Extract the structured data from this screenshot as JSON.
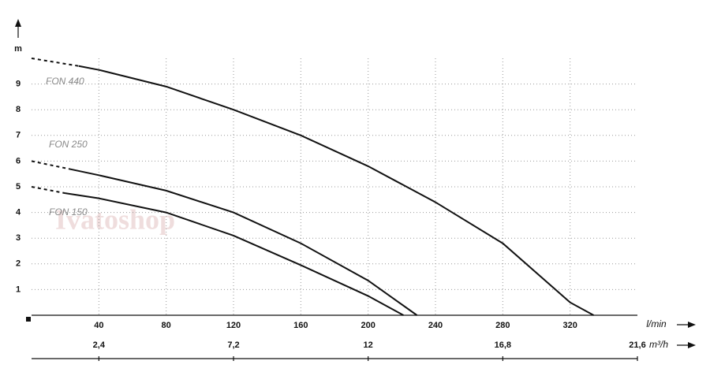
{
  "chart_data": {
    "type": "line",
    "y_label": "m",
    "x_label": "l/min",
    "x2_label": "m³/h",
    "watermark": "Ivatoshop",
    "xlim": [
      0,
      360
    ],
    "xticks": [
      40,
      80,
      120,
      160,
      200,
      240,
      280,
      320
    ],
    "x2lim": [
      0,
      21.6
    ],
    "x2ticks": [
      {
        "value": 2.4,
        "label": "2,4"
      },
      {
        "value": 7.2,
        "label": "7,2"
      },
      12,
      {
        "value": 16.8,
        "label": "16,8"
      },
      {
        "value": 21.6,
        "label": "21,6"
      }
    ],
    "ylim": [
      0,
      10
    ],
    "yticks": [
      1,
      2,
      3,
      4,
      5,
      6,
      7,
      8,
      9
    ],
    "grid": true,
    "series": [
      {
        "name": "FON 440",
        "color": "#111111",
        "x": [
          28,
          40,
          80,
          120,
          160,
          200,
          240,
          280,
          320,
          334
        ],
        "values": [
          9.7,
          9.55,
          8.9,
          8.0,
          7.0,
          5.8,
          4.4,
          2.8,
          0.5,
          0
        ],
        "extrapolated": {
          "x": [
            0,
            28
          ],
          "values": [
            10,
            9.7
          ]
        }
      },
      {
        "name": "FON 250",
        "color": "#111111",
        "x": [
          22,
          40,
          80,
          120,
          160,
          200,
          229
        ],
        "values": [
          5.7,
          5.45,
          4.85,
          4.0,
          2.8,
          1.35,
          0
        ],
        "extrapolated": {
          "x": [
            0,
            22
          ],
          "values": [
            6,
            5.7
          ]
        }
      },
      {
        "name": "FON 150",
        "color": "#111111",
        "x": [
          20,
          40,
          80,
          120,
          160,
          200,
          221
        ],
        "values": [
          4.75,
          4.55,
          4.0,
          3.1,
          1.95,
          0.75,
          0
        ],
        "extrapolated": {
          "x": [
            0,
            20
          ],
          "values": [
            5,
            4.75
          ]
        }
      }
    ]
  }
}
